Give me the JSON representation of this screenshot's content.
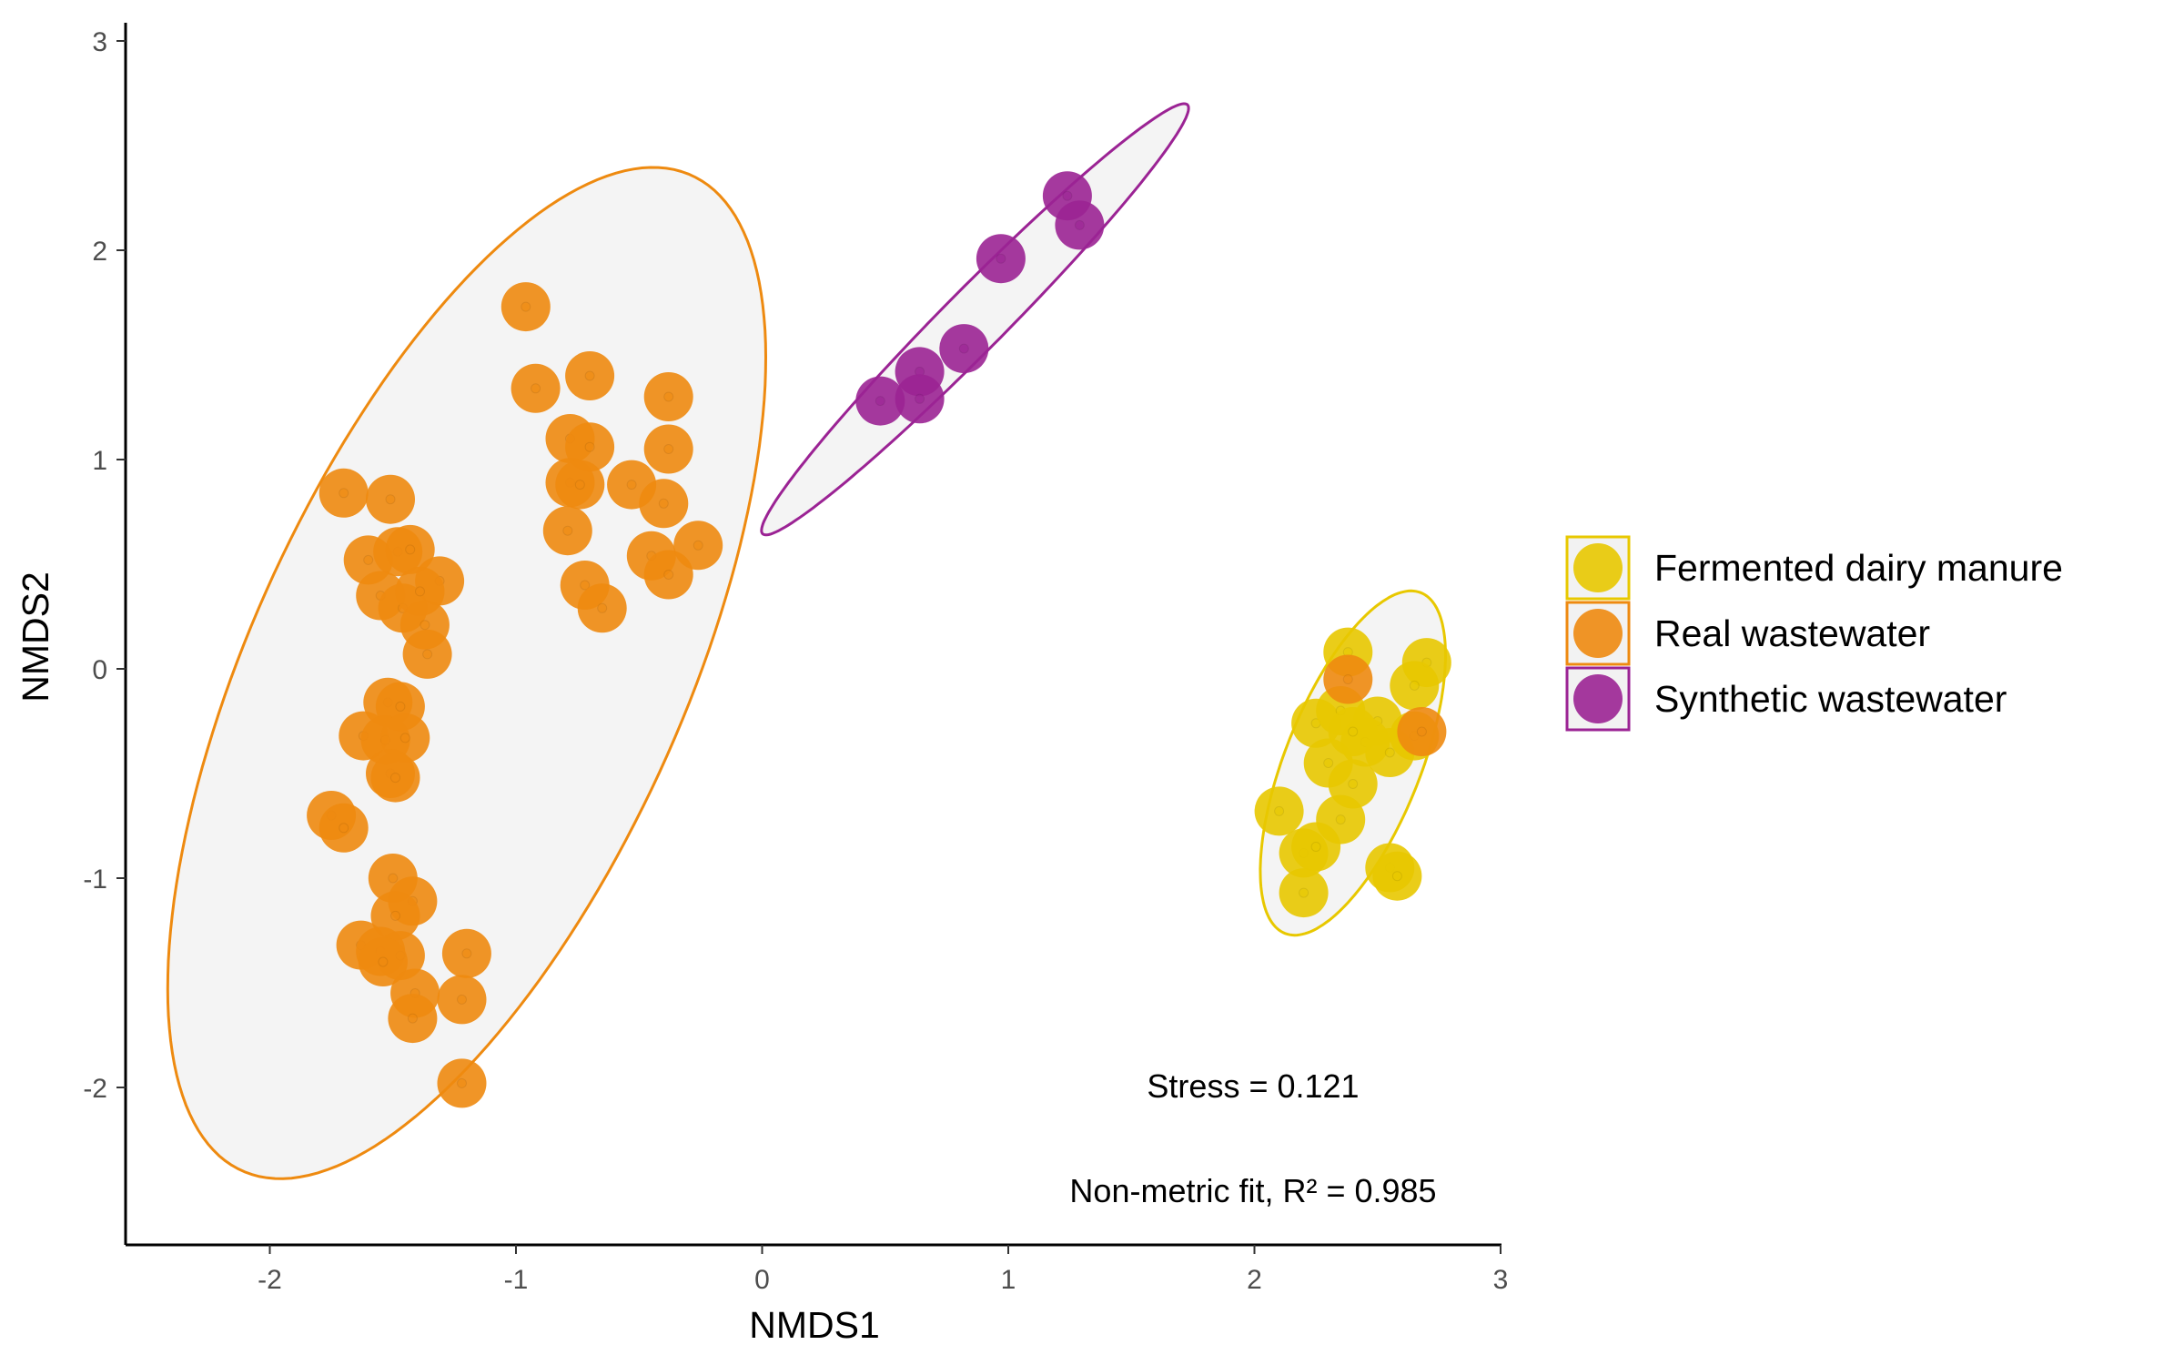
{
  "chart_data": {
    "type": "scatter",
    "title": "",
    "xlabel": "NMDS1",
    "ylabel": "NMDS2",
    "xlim": [
      -2.6,
      3.0
    ],
    "ylim": [
      -2.7,
      3.1
    ],
    "xticks": [
      -2,
      -1,
      0,
      1,
      2,
      3
    ],
    "yticks": [
      -2,
      -1,
      0,
      1,
      2,
      3
    ],
    "xtick_labels": [
      "-2",
      "-1",
      "0",
      "1",
      "2",
      "3"
    ],
    "ytick_labels": [
      "-2",
      "-1",
      "0",
      "1",
      "2",
      "3"
    ],
    "grid": false,
    "legend_position": "right",
    "annotations": [
      "Stress = 0.121",
      "Non-metric fit, R² = 0.985"
    ],
    "series": [
      {
        "name": "Fermented dairy manure",
        "color": "#E8C800",
        "points": [
          [
            2.38,
            0.08
          ],
          [
            2.7,
            0.03
          ],
          [
            2.65,
            -0.08
          ],
          [
            2.25,
            -0.26
          ],
          [
            2.5,
            -0.25
          ],
          [
            2.45,
            -0.35
          ],
          [
            2.3,
            -0.45
          ],
          [
            2.4,
            -0.55
          ],
          [
            2.55,
            -0.4
          ],
          [
            2.35,
            -0.72
          ],
          [
            2.1,
            -0.68
          ],
          [
            2.2,
            -0.88
          ],
          [
            2.25,
            -0.85
          ],
          [
            2.2,
            -1.07
          ],
          [
            2.55,
            -0.95
          ],
          [
            2.58,
            -0.99
          ],
          [
            2.35,
            -0.2
          ],
          [
            2.65,
            -0.32
          ],
          [
            2.4,
            -0.3
          ]
        ],
        "ellipse": {
          "center": [
            2.4,
            -0.45
          ],
          "semi_major": 0.86,
          "semi_minor": 0.28,
          "angle_deg": 72
        }
      },
      {
        "name": "Real wastewater",
        "color": "#EE8A10",
        "points": [
          [
            -0.96,
            1.73
          ],
          [
            -0.92,
            1.34
          ],
          [
            -0.7,
            1.4
          ],
          [
            -0.38,
            1.3
          ],
          [
            -0.78,
            1.1
          ],
          [
            -0.7,
            1.06
          ],
          [
            -0.38,
            1.05
          ],
          [
            -0.78,
            0.89
          ],
          [
            -0.74,
            0.88
          ],
          [
            -0.53,
            0.88
          ],
          [
            -0.4,
            0.79
          ],
          [
            -0.79,
            0.66
          ],
          [
            -0.45,
            0.54
          ],
          [
            -0.38,
            0.45
          ],
          [
            -0.26,
            0.59
          ],
          [
            -0.72,
            0.4
          ],
          [
            -0.65,
            0.29
          ],
          [
            -1.7,
            0.84
          ],
          [
            -1.51,
            0.81
          ],
          [
            -1.6,
            0.52
          ],
          [
            -1.48,
            0.56
          ],
          [
            -1.43,
            0.57
          ],
          [
            -1.31,
            0.42
          ],
          [
            -1.55,
            0.35
          ],
          [
            -1.46,
            0.29
          ],
          [
            -1.39,
            0.37
          ],
          [
            -1.37,
            0.21
          ],
          [
            -1.36,
            0.07
          ],
          [
            -1.52,
            -0.16
          ],
          [
            -1.47,
            -0.18
          ],
          [
            -1.62,
            -0.32
          ],
          [
            -1.53,
            -0.34
          ],
          [
            -1.45,
            -0.33
          ],
          [
            -1.51,
            -0.5
          ],
          [
            -1.49,
            -0.52
          ],
          [
            -1.75,
            -0.7
          ],
          [
            -1.7,
            -0.76
          ],
          [
            -1.5,
            -1.0
          ],
          [
            -1.42,
            -1.11
          ],
          [
            -1.49,
            -1.18
          ],
          [
            -1.63,
            -1.32
          ],
          [
            -1.55,
            -1.35
          ],
          [
            -1.47,
            -1.37
          ],
          [
            -1.54,
            -1.4
          ],
          [
            -1.41,
            -1.55
          ],
          [
            -1.2,
            -1.36
          ],
          [
            -1.22,
            -1.58
          ],
          [
            -1.42,
            -1.67
          ],
          [
            -1.22,
            -1.98
          ],
          [
            2.68,
            -0.3
          ],
          [
            2.38,
            -0.05
          ]
        ],
        "ellipse": {
          "center": [
            -1.2,
            -0.02
          ],
          "semi_major": 2.55,
          "semi_minor": 0.9,
          "angle_deg": 70
        }
      },
      {
        "name": "Synthetic wastewater",
        "color": "#9B2394",
        "points": [
          [
            1.24,
            2.26
          ],
          [
            1.29,
            2.12
          ],
          [
            0.97,
            1.96
          ],
          [
            0.82,
            1.53
          ],
          [
            0.64,
            1.42
          ],
          [
            0.64,
            1.29
          ],
          [
            0.48,
            1.28
          ]
        ],
        "ellipse": {
          "center": [
            0.865,
            1.67
          ],
          "semi_major": 1.34,
          "semi_minor": 0.135,
          "angle_deg": 50
        }
      }
    ]
  }
}
